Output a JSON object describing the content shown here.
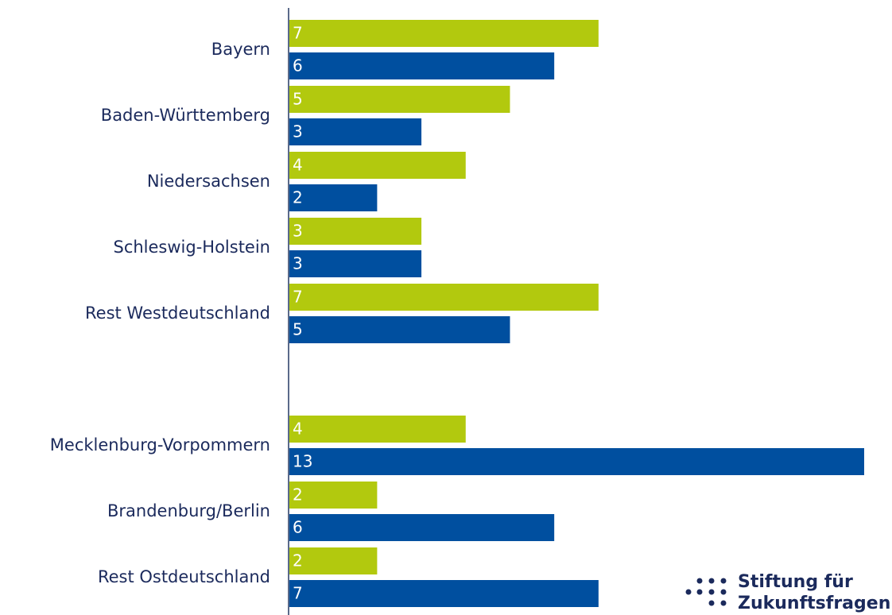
{
  "chart_data": {
    "type": "bar",
    "orientation": "horizontal",
    "categories": [
      "Bayern",
      "Baden-Württemberg",
      "Niedersachsen",
      "Schleswig-Holstein",
      "Rest Westdeutschland",
      null,
      "Mecklenburg-Vorpommern",
      "Brandenburg/Berlin",
      "Rest Ostdeutschland"
    ],
    "series": [
      {
        "color": "#b2c90e",
        "values": [
          7,
          5,
          4,
          3,
          7,
          null,
          4,
          2,
          2
        ]
      },
      {
        "color": "#004f9f",
        "values": [
          6,
          3,
          2,
          3,
          5,
          null,
          13,
          6,
          7
        ]
      }
    ],
    "xlim": [
      0,
      13
    ]
  },
  "logo": {
    "lines": [
      "Stiftung für",
      "Zukunftsfragen"
    ]
  }
}
